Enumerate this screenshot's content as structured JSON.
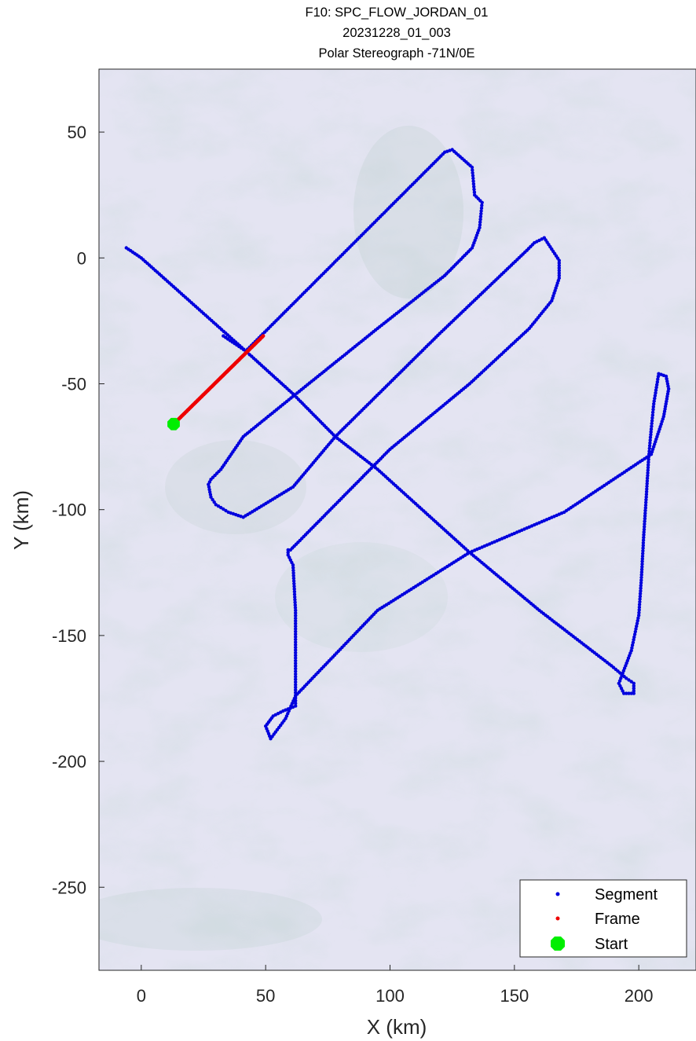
{
  "title_lines": [
    "F10: SPC_FLOW_JORDAN_01",
    "20231228_01_003",
    "Polar Stereograph -71N/0E"
  ],
  "map": {
    "projection": "Polar Stereograph -71N/0E",
    "background": "satellite-ice-imagery",
    "background_color": "#e4e4f2"
  },
  "chart_data": {
    "type": "scatter",
    "xlabel": "X (km)",
    "ylabel": "Y (km)",
    "xlim": [
      -17,
      223
    ],
    "ylim": [
      -283,
      75
    ],
    "xticks": [
      0,
      50,
      100,
      150,
      200
    ],
    "yticks": [
      50,
      0,
      -50,
      -100,
      -150,
      -200,
      -250
    ],
    "series": [
      {
        "name": "Segment",
        "color": "#0000dd",
        "x": [
          -6,
          0,
          42,
          61,
          78,
          95,
          132,
          160,
          189,
          195,
          198,
          198,
          194,
          192,
          197,
          200,
          201,
          202,
          203,
          204,
          205,
          206,
          208,
          211,
          212,
          210,
          205,
          170,
          132,
          95,
          62,
          58,
          52,
          50,
          53,
          57,
          62,
          62,
          62,
          61,
          59,
          59,
          60,
          100,
          132,
          156,
          165,
          168,
          168,
          162,
          158,
          155,
          120,
          78,
          61,
          41,
          35,
          30,
          28,
          27,
          28,
          32,
          41,
          61,
          95,
          122,
          127,
          133,
          136,
          137,
          134,
          133,
          125,
          122,
          42,
          33
        ],
        "y": [
          4,
          0,
          -37,
          -54,
          -71,
          -84,
          -117,
          -140,
          -162,
          -167,
          -169,
          -173,
          -173,
          -169,
          -156,
          -142,
          -128,
          -110,
          -95,
          -79,
          -68,
          -58,
          -46,
          -47,
          -52,
          -63,
          -78,
          -101,
          -117,
          -140,
          -174,
          -183,
          -191,
          -186,
          -182,
          -180,
          -178,
          -160,
          -140,
          -122,
          -118,
          -116,
          -116,
          -76,
          -50,
          -28,
          -17,
          -8,
          -1,
          8,
          6,
          3,
          -30,
          -71,
          -91,
          -103,
          -101,
          -98,
          -95,
          -90,
          -88,
          -84,
          -71,
          -55,
          -28,
          -7,
          -2,
          4,
          12,
          22,
          25,
          36,
          43,
          42,
          -37,
          -31
        ]
      },
      {
        "name": "Frame",
        "color": "#ee0000",
        "x": [
          13,
          49
        ],
        "y": [
          -66,
          -31
        ]
      },
      {
        "name": "Start",
        "color": "#00ee00",
        "x": [
          13
        ],
        "y": [
          -66
        ]
      }
    ],
    "legend_position": "bottom-right",
    "grid": false
  }
}
